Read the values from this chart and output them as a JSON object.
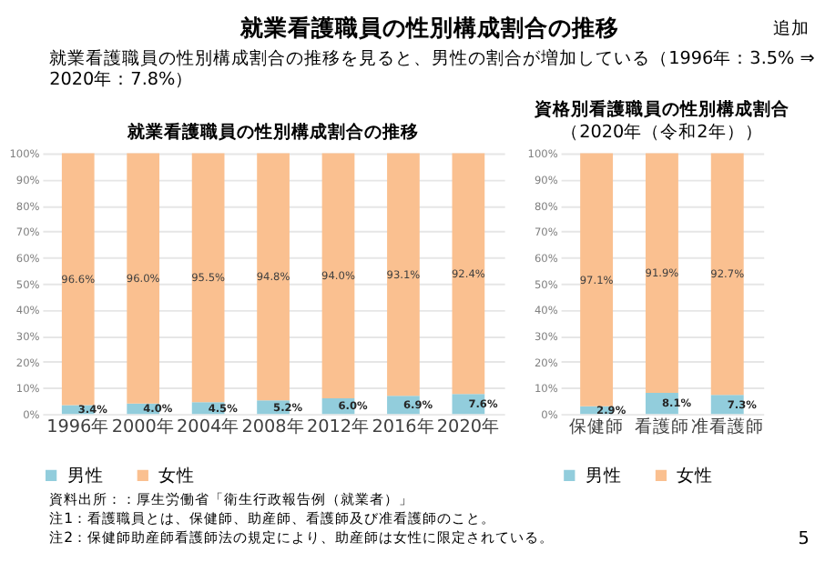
{
  "chart_data": [
    {
      "type": "bar",
      "title": "就業看護職員の性別構成割合の推移",
      "stacked": true,
      "categories": [
        "1996年",
        "2000年",
        "2004年",
        "2008年",
        "2012年",
        "2016年",
        "2020年"
      ],
      "series": [
        {
          "name": "男性",
          "color": "#92cddc",
          "values": [
            3.4,
            4.0,
            4.5,
            5.2,
            6.0,
            6.9,
            7.6
          ],
          "value_labels": [
            "3.4%",
            "4.0%",
            "4.5%",
            "5.2%",
            "6.0%",
            "6.9%",
            "7.6%"
          ]
        },
        {
          "name": "女性",
          "color": "#fac090",
          "values": [
            96.6,
            96.0,
            95.5,
            94.8,
            94.0,
            93.1,
            92.4
          ],
          "value_labels": [
            "96.6%",
            "96.0%",
            "95.5%",
            "94.8%",
            "94.0%",
            "93.1%",
            "92.4%"
          ]
        }
      ],
      "ylim": [
        0,
        100
      ],
      "yticks": [
        {
          "value": 0,
          "label": "0%"
        },
        {
          "value": 10,
          "label": "10%"
        },
        {
          "value": 20,
          "label": "20%"
        },
        {
          "value": 30,
          "label": "30%"
        },
        {
          "value": 40,
          "label": "40%"
        },
        {
          "value": 50,
          "label": "50%"
        },
        {
          "value": 60,
          "label": "60%"
        },
        {
          "value": 70,
          "label": "70%"
        },
        {
          "value": 80,
          "label": "80%"
        },
        {
          "value": 90,
          "label": "90%"
        },
        {
          "value": 100,
          "label": "100%"
        }
      ],
      "grid": "y",
      "legend": "bottom",
      "data_labels": true,
      "annotations": [
        "就業看護職員の性別構成割合の推移",
        "就業看護職員の性別構成割合の推移を見ると、男性の割合が増加している（1996年：3.5% ⇒ 2020年：7.8%）",
        "追加",
        "資料出所：：厚生労働省「衛生行政報告例（就業者）」",
        "注1：看護職員とは、保健師、助産師、看護師及び准看護師のこと。",
        "注2：保健師助産師看護師法の規定により、助産師は女性に限定されている。",
        "5"
      ]
    },
    {
      "type": "bar",
      "title": "資格別看護職員の性別構成割合",
      "subtitle": "（2020年（令和2年））",
      "stacked": true,
      "categories": [
        "保健師",
        "看護師",
        "准看護師"
      ],
      "series": [
        {
          "name": "男性",
          "color": "#92cddc",
          "values": [
            2.9,
            8.1,
            7.3
          ],
          "value_labels": [
            "2.9%",
            "8.1%",
            "7.3%"
          ]
        },
        {
          "name": "女性",
          "color": "#fac090",
          "values": [
            97.1,
            91.9,
            92.7
          ],
          "value_labels": [
            "97.1%",
            "91.9%",
            "92.7%"
          ]
        }
      ],
      "ylim": [
        0,
        100
      ],
      "yticks": [
        {
          "value": 0,
          "label": "0%"
        },
        {
          "value": 10,
          "label": "10%"
        },
        {
          "value": 20,
          "label": "20%"
        },
        {
          "value": 30,
          "label": "30%"
        },
        {
          "value": 40,
          "label": "40%"
        },
        {
          "value": 50,
          "label": "50%"
        },
        {
          "value": 60,
          "label": "60%"
        },
        {
          "value": 70,
          "label": "70%"
        },
        {
          "value": 80,
          "label": "80%"
        },
        {
          "value": 90,
          "label": "90%"
        },
        {
          "value": 100,
          "label": "100%"
        }
      ],
      "grid": "y",
      "legend": "bottom",
      "data_labels": true
    }
  ]
}
